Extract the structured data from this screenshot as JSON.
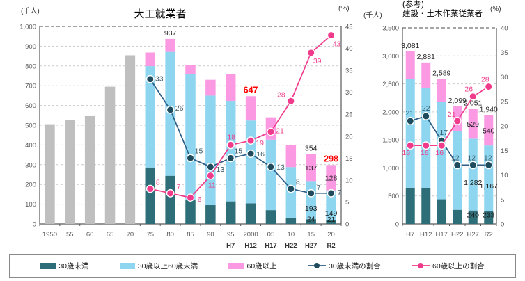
{
  "colors": {
    "gray_bar": "#bfbfbf",
    "under30_bar": "#2e6e78",
    "mid_bar": "#8ed6f0",
    "over60_bar": "#fb9ae2",
    "under30_line": "#2d5d85",
    "under30_marker": "#1f4b5e",
    "under30_label": "#3a5a68",
    "over60_line": "#f03b8c",
    "over60_label": "#ee3d8c",
    "red_label": "#ff0000",
    "black_label": "#262626",
    "seg_label": "#1a1a1a",
    "axis_text": "#595959",
    "sub_text": "#333333",
    "grid": "#c9c9c9",
    "top_grid": "#6e6e6e",
    "axis_line": "#595959"
  },
  "chart_data": [
    {
      "type": "stacked-bar+line",
      "title": "大工就業者",
      "ylabel_left": "(千人)",
      "ylabel_right": "(%)",
      "y_left": {
        "min": 0,
        "max": 1000,
        "step": 100
      },
      "y_right": {
        "min": 0,
        "max": 45,
        "step": 5
      },
      "grid": "on",
      "categories": [
        "1950",
        "55",
        "60",
        "65",
        "70",
        "75",
        "80",
        "85",
        "90",
        "95",
        "2000",
        "05",
        "10",
        "15",
        "20"
      ],
      "sub_labels": [
        "",
        "",
        "",
        "",
        "",
        "",
        "",
        "",
        "",
        "H7",
        "H12",
        "H17",
        "H22",
        "H27",
        "R2"
      ],
      "bars": {
        "gray_totals": [
          505,
          527,
          546,
          695,
          854,
          null,
          null,
          null,
          null,
          null,
          null,
          null,
          null,
          null,
          null
        ],
        "under30": [
          null,
          null,
          null,
          null,
          null,
          286,
          244,
          121,
          95,
          114,
          104,
          70,
          32,
          24,
          21
        ],
        "age30_59": [
          null,
          null,
          null,
          null,
          null,
          513,
          627,
          637,
          555,
          509,
          420,
          357,
          256,
          193,
          149
        ],
        "over60": [
          null,
          null,
          null,
          null,
          null,
          69,
          66,
          48,
          80,
          137,
          123,
          113,
          112,
          137,
          128
        ]
      },
      "series": [
        {
          "name": "30歳未満の割合",
          "values": [
            null,
            null,
            null,
            null,
            null,
            33,
            26,
            15,
            13,
            15,
            16,
            13,
            8,
            7,
            7
          ],
          "label_offsets": [
            null,
            null,
            null,
            null,
            null,
            [
              13,
              3
            ],
            [
              13,
              1
            ],
            [
              12,
              -7
            ],
            [
              14,
              7
            ],
            [
              11,
              -7
            ],
            [
              14,
              4
            ],
            [
              14,
              4
            ],
            [
              10,
              -7
            ],
            [
              11,
              -5
            ],
            [
              12,
              2
            ]
          ]
        },
        {
          "name": "60歳以上の割合",
          "values": [
            null,
            null,
            null,
            null,
            null,
            8,
            7,
            6,
            11,
            18,
            19,
            21,
            28,
            39,
            43
          ],
          "label_offsets": [
            null,
            null,
            null,
            null,
            null,
            [
              11,
              -6
            ],
            [
              12,
              -6
            ],
            [
              13,
              6
            ],
            [
              2,
              17
            ],
            [
              1,
              -8
            ],
            [
              13,
              7
            ],
            [
              13,
              2
            ],
            [
              -14,
              -6
            ],
            [
              9,
              15
            ],
            [
              8,
              16
            ]
          ]
        }
      ],
      "total_labels": [
        {
          "index": 6,
          "red": false
        },
        {
          "index": 10,
          "red": true
        },
        {
          "index": 13,
          "red": false
        },
        {
          "index": 14,
          "red": true
        }
      ],
      "segment_label_indices": [
        13,
        14
      ]
    },
    {
      "type": "stacked-bar+line",
      "title_lines": [
        "(参考)",
        "建設・土木作業従業者"
      ],
      "ylabel_left": "(千人)",
      "ylabel_right": "(%)",
      "y_left": {
        "min": 0,
        "max": 3500,
        "step": 500
      },
      "y_right": {
        "min": 0,
        "max": 40,
        "step": 5
      },
      "grid": "on",
      "categories": [
        "H7",
        "H12",
        "H17",
        "H22",
        "H27",
        "R2"
      ],
      "sub_labels": [
        "",
        "",
        "",
        "",
        "",
        ""
      ],
      "bars": {
        "gray_totals": [
          null,
          null,
          null,
          null,
          null,
          null
        ],
        "under30": [
          647,
          634,
          440,
          252,
          240,
          233
        ],
        "age30_59": [
          1941,
          1786,
          1735,
          1406,
          1282,
          1167
        ],
        "over60": [
          493,
          461,
          414,
          441,
          529,
          540
        ]
      },
      "series": [
        {
          "name": "30歳未満の割合",
          "values": [
            21,
            22,
            17,
            12,
            12,
            12
          ],
          "label_offsets": [
            [
              -1,
              -8
            ],
            [
              0,
              -8
            ],
            [
              3,
              -8
            ],
            [
              -3,
              -7
            ],
            [
              -2,
              -7
            ],
            [
              -1,
              -7
            ]
          ]
        },
        {
          "name": "60歳以上の割合",
          "values": [
            16,
            16,
            16,
            21,
            26,
            28
          ],
          "label_offsets": [
            [
              -6,
              14
            ],
            [
              -2,
              14
            ],
            [
              -3,
              14
            ],
            [
              -8,
              -6
            ],
            [
              -6,
              -7
            ],
            [
              -5,
              -7
            ]
          ]
        }
      ],
      "total_labels": [
        {
          "index": 0,
          "red": false
        },
        {
          "index": 1,
          "red": false
        },
        {
          "index": 2,
          "red": false
        },
        {
          "index": 3,
          "red": false
        },
        {
          "index": 4,
          "red": false
        },
        {
          "index": 5,
          "red": false
        }
      ],
      "segment_label_indices": [
        4,
        5
      ]
    }
  ],
  "legend": {
    "items": [
      {
        "kind": "swatch",
        "color_key": "under30_bar",
        "label": "30歳未満"
      },
      {
        "kind": "swatch",
        "color_key": "mid_bar",
        "label": "30歳以上60歳未満"
      },
      {
        "kind": "swatch",
        "color_key": "over60_bar",
        "label": "60歳以上"
      },
      {
        "kind": "line",
        "line_key": "under30_line",
        "marker_key": "under30_marker",
        "label": "30歳未満の割合"
      },
      {
        "kind": "line",
        "line_key": "over60_line",
        "marker_key": "over60_line",
        "label": "60歳以上の割合"
      }
    ]
  }
}
